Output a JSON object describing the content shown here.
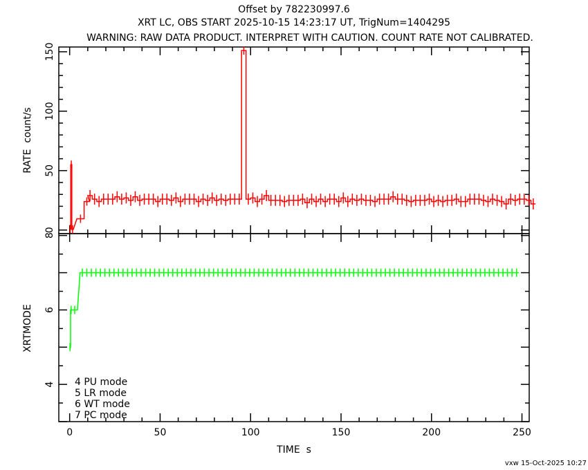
{
  "chart_data": [
    {
      "type": "line",
      "title_lines": [
        "Offset by 782230997.6",
        "XRT LC, OBS START 2025-10-15 14:23:17 UT, TrigNum=1404295",
        "WARNING: RAW DATA PRODUCT. INTERPRET WITH CAUTION. COUNT RATE NOT CALIBRATED."
      ],
      "ylabel": "RATE  count/s",
      "xlim": [
        -6,
        254
      ],
      "ylim": [
        -3,
        154
      ],
      "yticks": [
        0,
        50,
        100,
        150
      ],
      "ytick_labels": [
        "0",
        "50",
        "100",
        "150"
      ],
      "color": "#ff0000",
      "early_points": [
        {
          "x": 0.3,
          "xerr": 0.3,
          "y": 1
        },
        {
          "x": 0.9,
          "xerr": 0.3,
          "y": 55
        },
        {
          "x": 1.6,
          "xerr": 0.4,
          "y": 0.5
        },
        {
          "x": 6.0,
          "xerr": 2.0,
          "y": 9.5
        },
        {
          "x": 9.5,
          "xerr": 1.5,
          "y": 24
        }
      ],
      "regular_start": 11.25,
      "bin_width": 2.5,
      "values": [
        29,
        26,
        24,
        26,
        26,
        26,
        28,
        26,
        27,
        25,
        28,
        25,
        26,
        26,
        26,
        24,
        26,
        26,
        25,
        27,
        24,
        26,
        26,
        26,
        24,
        26,
        25,
        27,
        25,
        26,
        25,
        26,
        26,
        26,
        151,
        26,
        27,
        24,
        26,
        29,
        25,
        25,
        25,
        24,
        25,
        25,
        25,
        26,
        23,
        26,
        24,
        26,
        24,
        26,
        26,
        24,
        27,
        24,
        26,
        25,
        26,
        25,
        25,
        24,
        26,
        26,
        26,
        28,
        26,
        26,
        25,
        24,
        25,
        25,
        25,
        26,
        24,
        25,
        24,
        25,
        25,
        26,
        24,
        24,
        26,
        26,
        26,
        25,
        24,
        26,
        25,
        24,
        22,
        26,
        25,
        26,
        26,
        25,
        22
      ]
    },
    {
      "type": "line",
      "ylabel": "XRTMODE",
      "xlabel": "TIME  s",
      "xlim": [
        -6,
        254
      ],
      "ylim": [
        3,
        8.05
      ],
      "xticks": [
        0,
        50,
        100,
        150,
        200,
        250
      ],
      "xtick_labels": [
        "0",
        "50",
        "100",
        "150",
        "200",
        "250"
      ],
      "yticks": [
        4,
        6,
        8
      ],
      "ytick_labels": [
        "4",
        "6",
        "8"
      ],
      "color": "#00ff00",
      "early_points": [
        {
          "x": 0.2,
          "xerr": 0.3,
          "y": 5
        },
        {
          "x": 0.8,
          "xerr": 0.3,
          "y": 6
        },
        {
          "x": 2.8,
          "xerr": 1.5,
          "y": 6
        }
      ],
      "mode7_start": 7.0,
      "mode7_end": 247.5,
      "bin_width": 2.5,
      "mode7_value": 7,
      "legend": [
        "4 PU mode",
        "5 LR mode",
        "6 WT mode",
        "7 PC mode"
      ]
    }
  ],
  "footer": "vxw 15-Oct-2025 10:27"
}
